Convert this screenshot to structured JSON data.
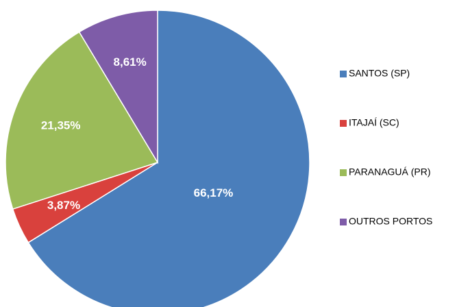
{
  "chart_data": {
    "type": "pie",
    "categories": [
      "SANTOS (SP)",
      "ITAJAÍ (SC)",
      "PARANAGUÁ (PR)",
      "OUTROS PORTOS"
    ],
    "values": [
      66.17,
      3.87,
      21.35,
      8.61
    ],
    "value_labels": [
      "66,17%",
      "3,87%",
      "21,35%",
      "8,61%"
    ],
    "colors": [
      "#4a7ebb",
      "#d9413d",
      "#9bbb59",
      "#7e5ca8"
    ],
    "legend": "right"
  }
}
